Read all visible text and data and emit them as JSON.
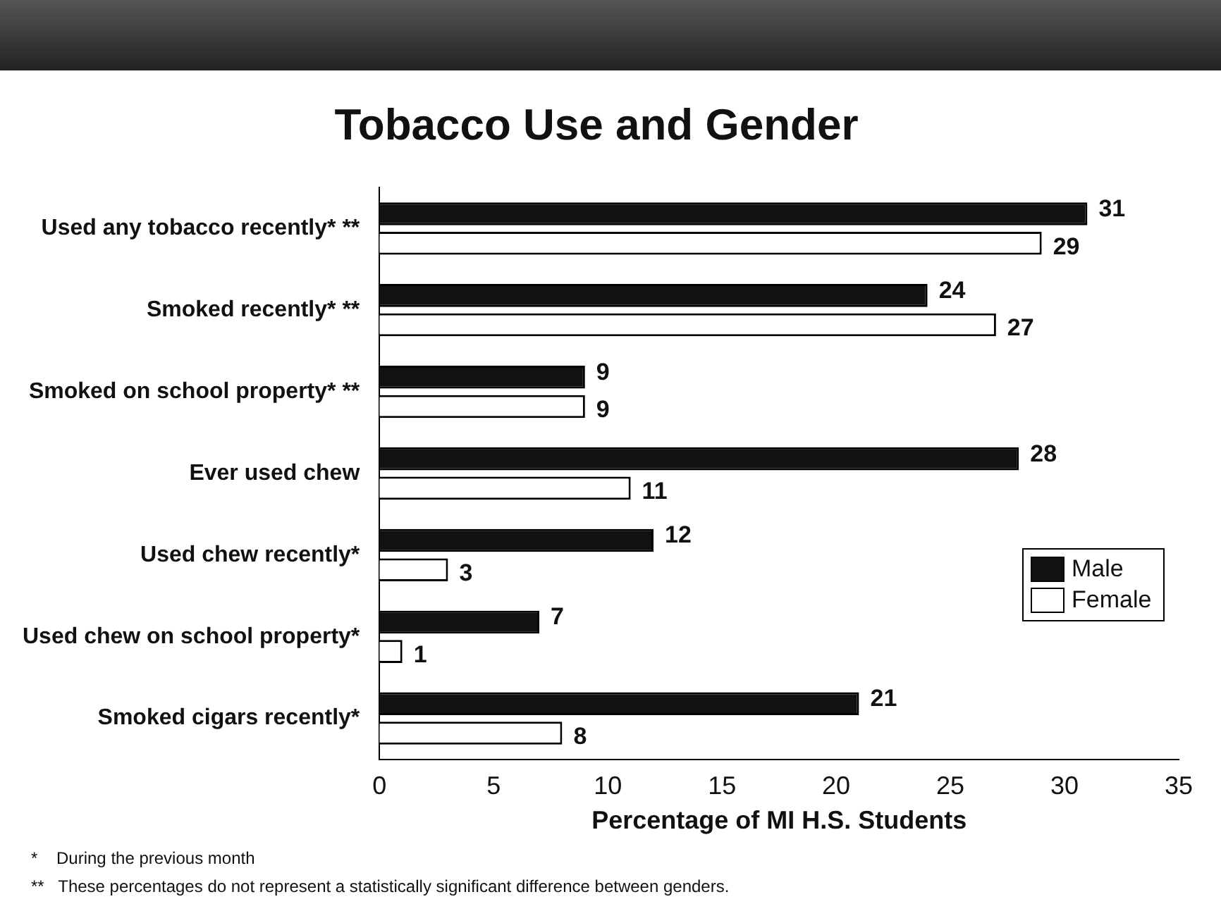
{
  "chart_data": {
    "type": "bar",
    "orientation": "horizontal",
    "title": "Tobacco Use and Gender",
    "xlabel": "Percentage of MI H.S. Students",
    "categories": [
      "Used any tobacco recently* **",
      "Smoked recently* **",
      "Smoked on school property* **",
      "Ever used chew",
      "Used chew recently*",
      "Used chew on school property*",
      "Smoked cigars recently*"
    ],
    "series": [
      {
        "name": "Male",
        "color": "#111111",
        "values": [
          31,
          24,
          9,
          28,
          12,
          7,
          21
        ]
      },
      {
        "name": "Female",
        "color": "#ffffff",
        "values": [
          29,
          27,
          9,
          11,
          3,
          1,
          8
        ]
      }
    ],
    "xlim": [
      0,
      35
    ],
    "xticks": [
      0,
      5,
      10,
      15,
      20,
      25,
      30,
      35
    ],
    "grid": false,
    "legend": "right",
    "data_labels": true,
    "annotations": [
      "*    During the previous month",
      "**   These percentages do not represent a statistically significant difference between genders."
    ]
  }
}
